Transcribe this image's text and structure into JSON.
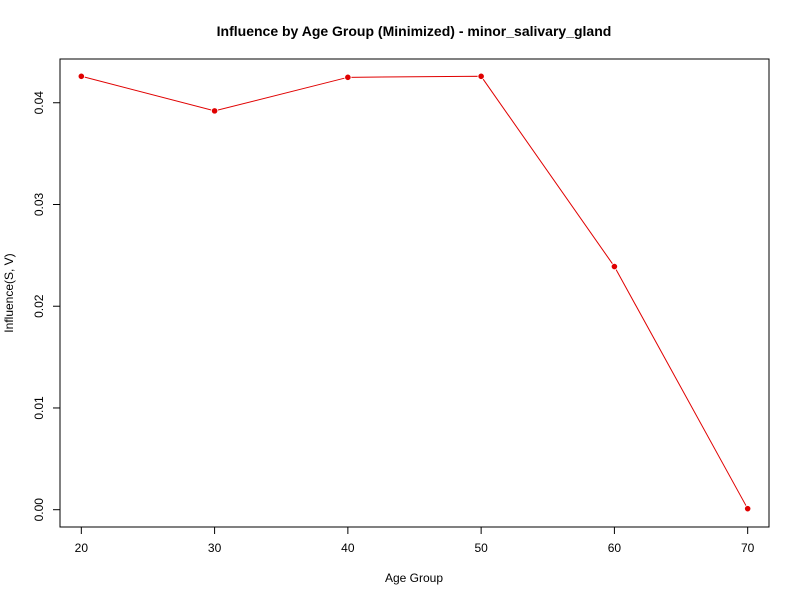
{
  "chart_data": {
    "type": "line",
    "title": "Influence by Age Group (Minimized) - minor_salivary_gland",
    "xlabel": "Age Group",
    "ylabel": "Influence(S, V)",
    "x": [
      20,
      30,
      40,
      50,
      60,
      70
    ],
    "series": [
      {
        "values": [
          0.0426,
          0.0392,
          0.0425,
          0.0426,
          0.0239,
          0.0001
        ]
      }
    ],
    "x_ticks": [
      20,
      30,
      40,
      50,
      60,
      70
    ],
    "x_tick_labels": [
      "20",
      "30",
      "40",
      "50",
      "60",
      "70"
    ],
    "y_ticks": [
      0.0,
      0.01,
      0.02,
      0.03,
      0.04
    ],
    "y_tick_labels": [
      "0.00",
      "0.01",
      "0.02",
      "0.03",
      "0.04"
    ],
    "xlim": [
      18.4,
      71.6
    ],
    "ylim": [
      -0.0017,
      0.0443
    ],
    "grid": false,
    "legend": "none",
    "line_color": "#e00000",
    "point_color": "#e00000",
    "frame_color": "#000000"
  }
}
